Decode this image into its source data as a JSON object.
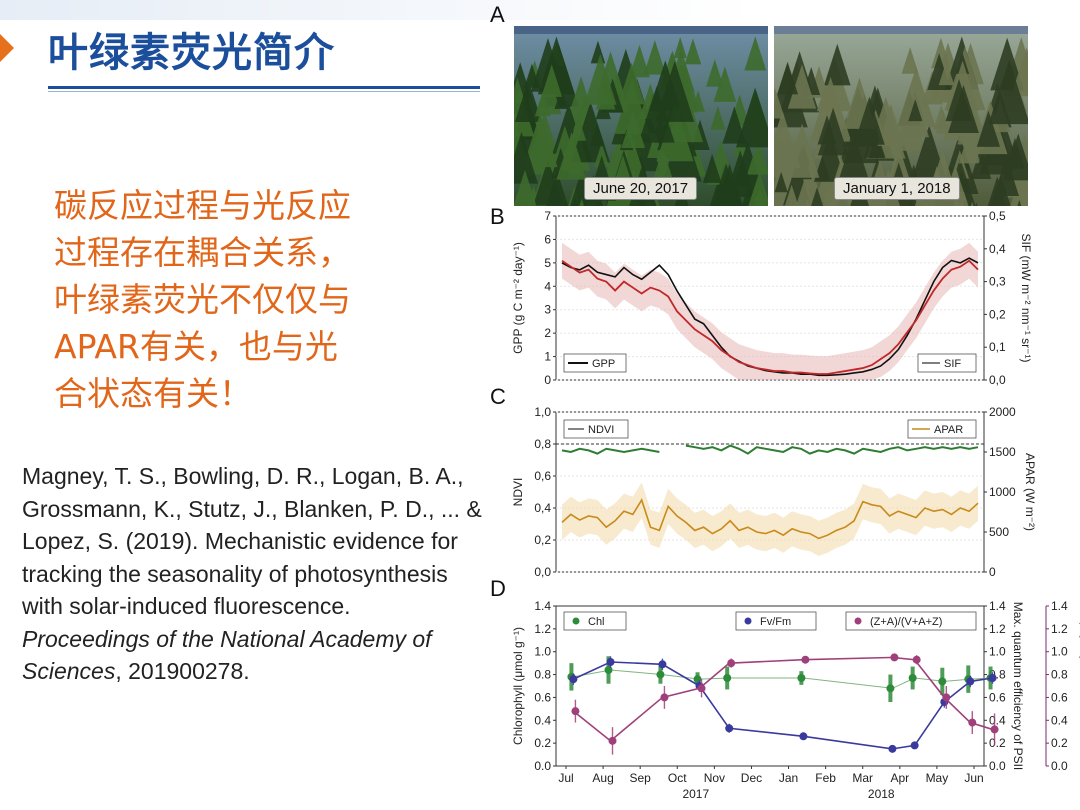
{
  "slide": {
    "title": "叶绿素荧光简介",
    "highlight_lines": [
      "碳反应过程与光反应",
      "过程存在耦合关系，",
      "叶绿素荧光不仅仅与",
      "APAR有关，也与光",
      "合状态有关！"
    ],
    "citation": {
      "plain": "Magney, T. S., Bowling, D. R., Logan, B. A., Grossmann, K., Stutz, J., Blanken, P. D., ... & Lopez, S. (2019). Mechanistic evidence for tracking the seasonality of photosynthesis with solar-induced fluorescence.",
      "journal": "Proceedings of the National Academy of Sciences",
      "tail": ", 201900278."
    },
    "colors": {
      "title": "#1b4e9b",
      "highlight": "#e2661a",
      "accent_arrow": "#e6701c"
    }
  },
  "figure": {
    "panels": {
      "A": {
        "letter": "A",
        "photo_left_caption": "June 20, 2017",
        "photo_right_caption": "January 1, 2018"
      },
      "B": {
        "letter": "B"
      },
      "C": {
        "letter": "C"
      },
      "D": {
        "letter": "D"
      }
    }
  },
  "chart_data": [
    {
      "panel": "B",
      "type": "line",
      "ylabel": "GPP (g C m⁻² day⁻¹)",
      "ylabel_right": "SIF (mW m⁻² nm⁻¹ sr⁻¹)",
      "ylim": [
        0,
        7
      ],
      "ylim_right": [
        0,
        0.55
      ],
      "yticks": [
        "0",
        "1",
        "2",
        "3",
        "4",
        "5",
        "6",
        "7"
      ],
      "yticks_right": [
        "0,0",
        "0,1",
        "0,2",
        "0,3",
        "0,4",
        "0,5"
      ],
      "legend": [
        {
          "name": "GPP",
          "color": "#111111"
        },
        {
          "name": "SIF",
          "color": "#c0282a"
        }
      ],
      "series": [
        {
          "name": "GPP",
          "color": "#111111",
          "values": [
            5.0,
            4.8,
            4.7,
            4.9,
            4.6,
            4.5,
            4.4,
            4.8,
            4.5,
            4.3,
            4.6,
            4.9,
            4.5,
            3.8,
            3.2,
            2.6,
            2.4,
            1.9,
            1.4,
            1.0,
            0.8,
            0.6,
            0.5,
            0.4,
            0.35,
            0.3,
            0.3,
            0.25,
            0.25,
            0.2,
            0.2,
            0.22,
            0.25,
            0.3,
            0.35,
            0.45,
            0.6,
            0.9,
            1.3,
            1.9,
            2.6,
            3.4,
            4.2,
            4.8,
            5.1,
            5.0,
            5.2,
            5.0
          ]
        },
        {
          "name": "SIF",
          "color": "#c0282a",
          "values": [
            0.4,
            0.38,
            0.36,
            0.37,
            0.34,
            0.33,
            0.3,
            0.33,
            0.31,
            0.29,
            0.31,
            0.3,
            0.28,
            0.23,
            0.2,
            0.17,
            0.15,
            0.13,
            0.1,
            0.08,
            0.06,
            0.05,
            0.04,
            0.035,
            0.03,
            0.03,
            0.025,
            0.025,
            0.022,
            0.02,
            0.02,
            0.025,
            0.03,
            0.035,
            0.04,
            0.05,
            0.07,
            0.09,
            0.12,
            0.16,
            0.2,
            0.25,
            0.3,
            0.34,
            0.37,
            0.38,
            0.4,
            0.37
          ]
        }
      ]
    },
    {
      "panel": "C",
      "type": "line",
      "ylabel": "NDVI",
      "ylabel_right": "APAR (W m⁻²)",
      "ylim": [
        0,
        1.0
      ],
      "ylim_right": [
        0,
        2000
      ],
      "yticks": [
        "0,0",
        "0,2",
        "0,4",
        "0,6",
        "0,8",
        "1,0"
      ],
      "yticks_right": [
        "0",
        "500",
        "1000",
        "1500",
        "2000"
      ],
      "legend": [
        {
          "name": "NDVI",
          "color": "#2e7d32"
        },
        {
          "name": "APAR",
          "color": "#c98a1a"
        }
      ],
      "series": [
        {
          "name": "NDVI",
          "color": "#2e7d32",
          "values": [
            0.76,
            0.75,
            0.77,
            0.76,
            0.74,
            0.77,
            0.76,
            0.75,
            0.76,
            0.77,
            0.76,
            0.75,
            null,
            null,
            0.79,
            0.78,
            0.77,
            0.78,
            0.76,
            0.79,
            0.77,
            0.74,
            0.78,
            0.77,
            0.76,
            0.75,
            0.78,
            0.77,
            0.74,
            0.76,
            0.75,
            0.77,
            0.76,
            0.74,
            0.77,
            0.76,
            0.75,
            0.77,
            0.78,
            0.76,
            0.77,
            0.78,
            0.77,
            0.78,
            0.77,
            0.78,
            0.77,
            0.78
          ]
        },
        {
          "name": "APAR",
          "color": "#c98a1a",
          "values": [
            620,
            720,
            650,
            700,
            680,
            560,
            640,
            760,
            720,
            900,
            560,
            520,
            820,
            700,
            620,
            520,
            560,
            480,
            540,
            640,
            520,
            560,
            500,
            480,
            520,
            460,
            540,
            500,
            480,
            420,
            460,
            520,
            560,
            640,
            880,
            840,
            820,
            700,
            760,
            720,
            680,
            800,
            760,
            780,
            720,
            800,
            760,
            860
          ]
        }
      ],
      "reference_line": 0.8
    },
    {
      "panel": "D",
      "type": "line",
      "ylabel": "Chlorophyll (μmol g⁻¹)",
      "ylabel_right": "Max. quantum efficiency of PSII",
      "ylabel_right2": "Xanthophyll cycle conversion state",
      "ylim": [
        0,
        1.4
      ],
      "yticks": [
        "0.0",
        "0.2",
        "0.4",
        "0.6",
        "0.8",
        "1.0",
        "1.2",
        "1.4"
      ],
      "yticks_right": [
        "0.0",
        "0.2",
        "0.4",
        "0.6",
        "0.8",
        "1.0",
        "1.2",
        "1.4"
      ],
      "yticks_right2": [
        "0.0",
        "0.2",
        "0.4",
        "0.6",
        "0.8",
        "1.0",
        "1.2",
        "1.4"
      ],
      "x_tick_labels": [
        "Jul",
        "Aug",
        "Sep",
        "Oct",
        "Nov",
        "Dec",
        "Jan",
        "Feb",
        "Mar",
        "Apr",
        "May",
        "Jun"
      ],
      "x_year_labels": [
        "2017",
        "2018"
      ],
      "legend": [
        {
          "name": "Chl",
          "color": "#2e8b3a"
        },
        {
          "name": "Fv/Fm",
          "color": "#3a3a9e"
        },
        {
          "name": "(Z+A)/(V+A+Z)",
          "color": "#a0407a"
        }
      ],
      "series": [
        {
          "name": "Chl",
          "color": "#2e8b3a",
          "x": [
            0.2,
            1.2,
            2.6,
            3.6,
            4.4,
            6.4,
            8.8,
            9.4,
            10.2,
            10.9,
            11.5
          ],
          "values": [
            0.78,
            0.84,
            0.8,
            0.76,
            0.77,
            0.77,
            0.68,
            0.77,
            0.74,
            0.76,
            0.77
          ],
          "err": [
            0.12,
            0.12,
            0.08,
            0.06,
            0.1,
            0.06,
            0.12,
            0.1,
            0.12,
            0.12,
            0.1
          ]
        },
        {
          "name": "Fv/Fm",
          "color": "#3a3a9e",
          "x": [
            0.2,
            1.2,
            2.6,
            3.6,
            4.4,
            6.4,
            8.8,
            9.4,
            10.2,
            10.9,
            11.5
          ],
          "values": [
            0.76,
            0.91,
            0.89,
            0.7,
            0.33,
            0.26,
            0.15,
            0.18,
            0.56,
            0.74,
            0.77
          ],
          "err": [
            0.05,
            0.05,
            0.05,
            0.05,
            0.04,
            0.03,
            0.03,
            0.03,
            0.05,
            0.05,
            0.05
          ]
        },
        {
          "name": "(Z+A)/(V+A+Z)",
          "color": "#a0407a",
          "x": [
            0.2,
            1.2,
            2.6,
            3.6,
            4.4,
            6.4,
            8.8,
            9.4,
            10.2,
            10.9,
            11.5
          ],
          "values": [
            0.48,
            0.22,
            0.6,
            0.68,
            0.9,
            0.93,
            0.95,
            0.93,
            0.6,
            0.38,
            0.32
          ],
          "err": [
            0.1,
            0.12,
            0.1,
            0.08,
            0.04,
            0.03,
            0.03,
            0.04,
            0.1,
            0.1,
            0.14
          ]
        }
      ]
    }
  ]
}
